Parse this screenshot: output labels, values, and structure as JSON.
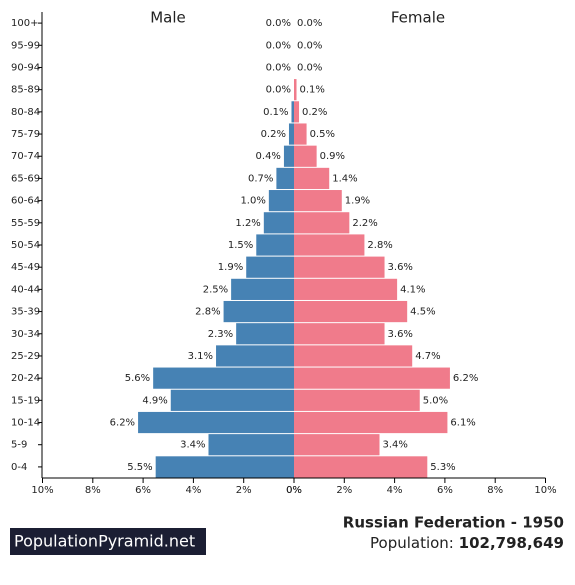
{
  "chart_data": {
    "type": "pyramid",
    "categories": [
      "100+",
      "95-99",
      "90-94",
      "85-89",
      "80-84",
      "75-79",
      "70-74",
      "65-69",
      "60-64",
      "55-59",
      "50-54",
      "45-49",
      "40-44",
      "35-39",
      "30-34",
      "25-29",
      "20-24",
      "15-19",
      "10-14",
      "5-9",
      "0-4"
    ],
    "series": [
      {
        "name": "Male",
        "color": "#4682b4",
        "values": [
          0.0,
          0.0,
          0.0,
          0.0,
          0.1,
          0.2,
          0.4,
          0.7,
          1.0,
          1.2,
          1.5,
          1.9,
          2.5,
          2.8,
          2.3,
          3.1,
          5.6,
          4.9,
          6.2,
          3.4,
          5.5
        ],
        "value_labels": [
          "0.0%",
          "0.0%",
          "0.0%",
          "0.0%",
          "0.1%",
          "0.2%",
          "0.4%",
          "0.7%",
          "1.0%",
          "1.2%",
          "1.5%",
          "1.9%",
          "2.5%",
          "2.8%",
          "2.3%",
          "3.1%",
          "5.6%",
          "4.9%",
          "6.2%",
          "3.4%",
          "5.5%"
        ]
      },
      {
        "name": "Female",
        "color": "#f07b8b",
        "values": [
          0.0,
          0.0,
          0.0,
          0.1,
          0.2,
          0.5,
          0.9,
          1.4,
          1.9,
          2.2,
          2.8,
          3.6,
          4.1,
          4.5,
          3.6,
          4.7,
          6.2,
          5.0,
          6.1,
          3.4,
          5.3
        ],
        "value_labels": [
          "0.0%",
          "0.0%",
          "0.0%",
          "0.1%",
          "0.2%",
          "0.5%",
          "0.9%",
          "1.4%",
          "1.9%",
          "2.2%",
          "2.8%",
          "3.6%",
          "4.1%",
          "4.5%",
          "3.6%",
          "4.7%",
          "6.2%",
          "5.0%",
          "6.1%",
          "3.4%",
          "5.3%"
        ]
      }
    ],
    "xlim": [
      0,
      10
    ],
    "xticks": [
      {
        "value": 0,
        "label": "0%"
      },
      {
        "value": 2,
        "label": "2%"
      },
      {
        "value": 4,
        "label": "4%"
      },
      {
        "value": 6,
        "label": "6%"
      },
      {
        "value": 8,
        "label": "8%"
      },
      {
        "value": 10,
        "label": "10%"
      }
    ]
  },
  "footer": {
    "logo": "PopulationPyramid.net",
    "title": "Russian Federation - 1950",
    "population_label": "Population:",
    "population": "102,798,649"
  }
}
